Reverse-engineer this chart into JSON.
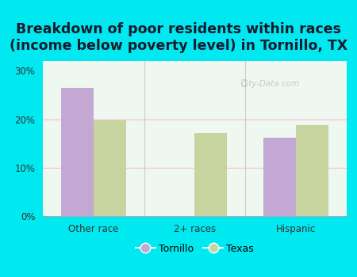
{
  "title": "Breakdown of poor residents within races\n(income below poverty level) in Tornillo, TX",
  "categories": [
    "Other race",
    "2+ races",
    "Hispanic"
  ],
  "tornillo_values": [
    26.5,
    0,
    16.2
  ],
  "texas_values": [
    19.8,
    17.1,
    18.8
  ],
  "tornillo_color": "#c4a8d4",
  "texas_color": "#c8d4a0",
  "background_color_tl": "#d8f0e0",
  "background_color_br": "#f8fef8",
  "outer_background": "#00e8f0",
  "ylim": [
    0,
    32
  ],
  "yticks": [
    0,
    10,
    20,
    30
  ],
  "ytick_labels": [
    "0%",
    "10%",
    "20%",
    "30%"
  ],
  "bar_width": 0.32,
  "title_fontsize": 12.5,
  "legend_labels": [
    "Tornillo",
    "Texas"
  ],
  "grid_color": "#f0c0c8",
  "watermark": "City-Data.com"
}
